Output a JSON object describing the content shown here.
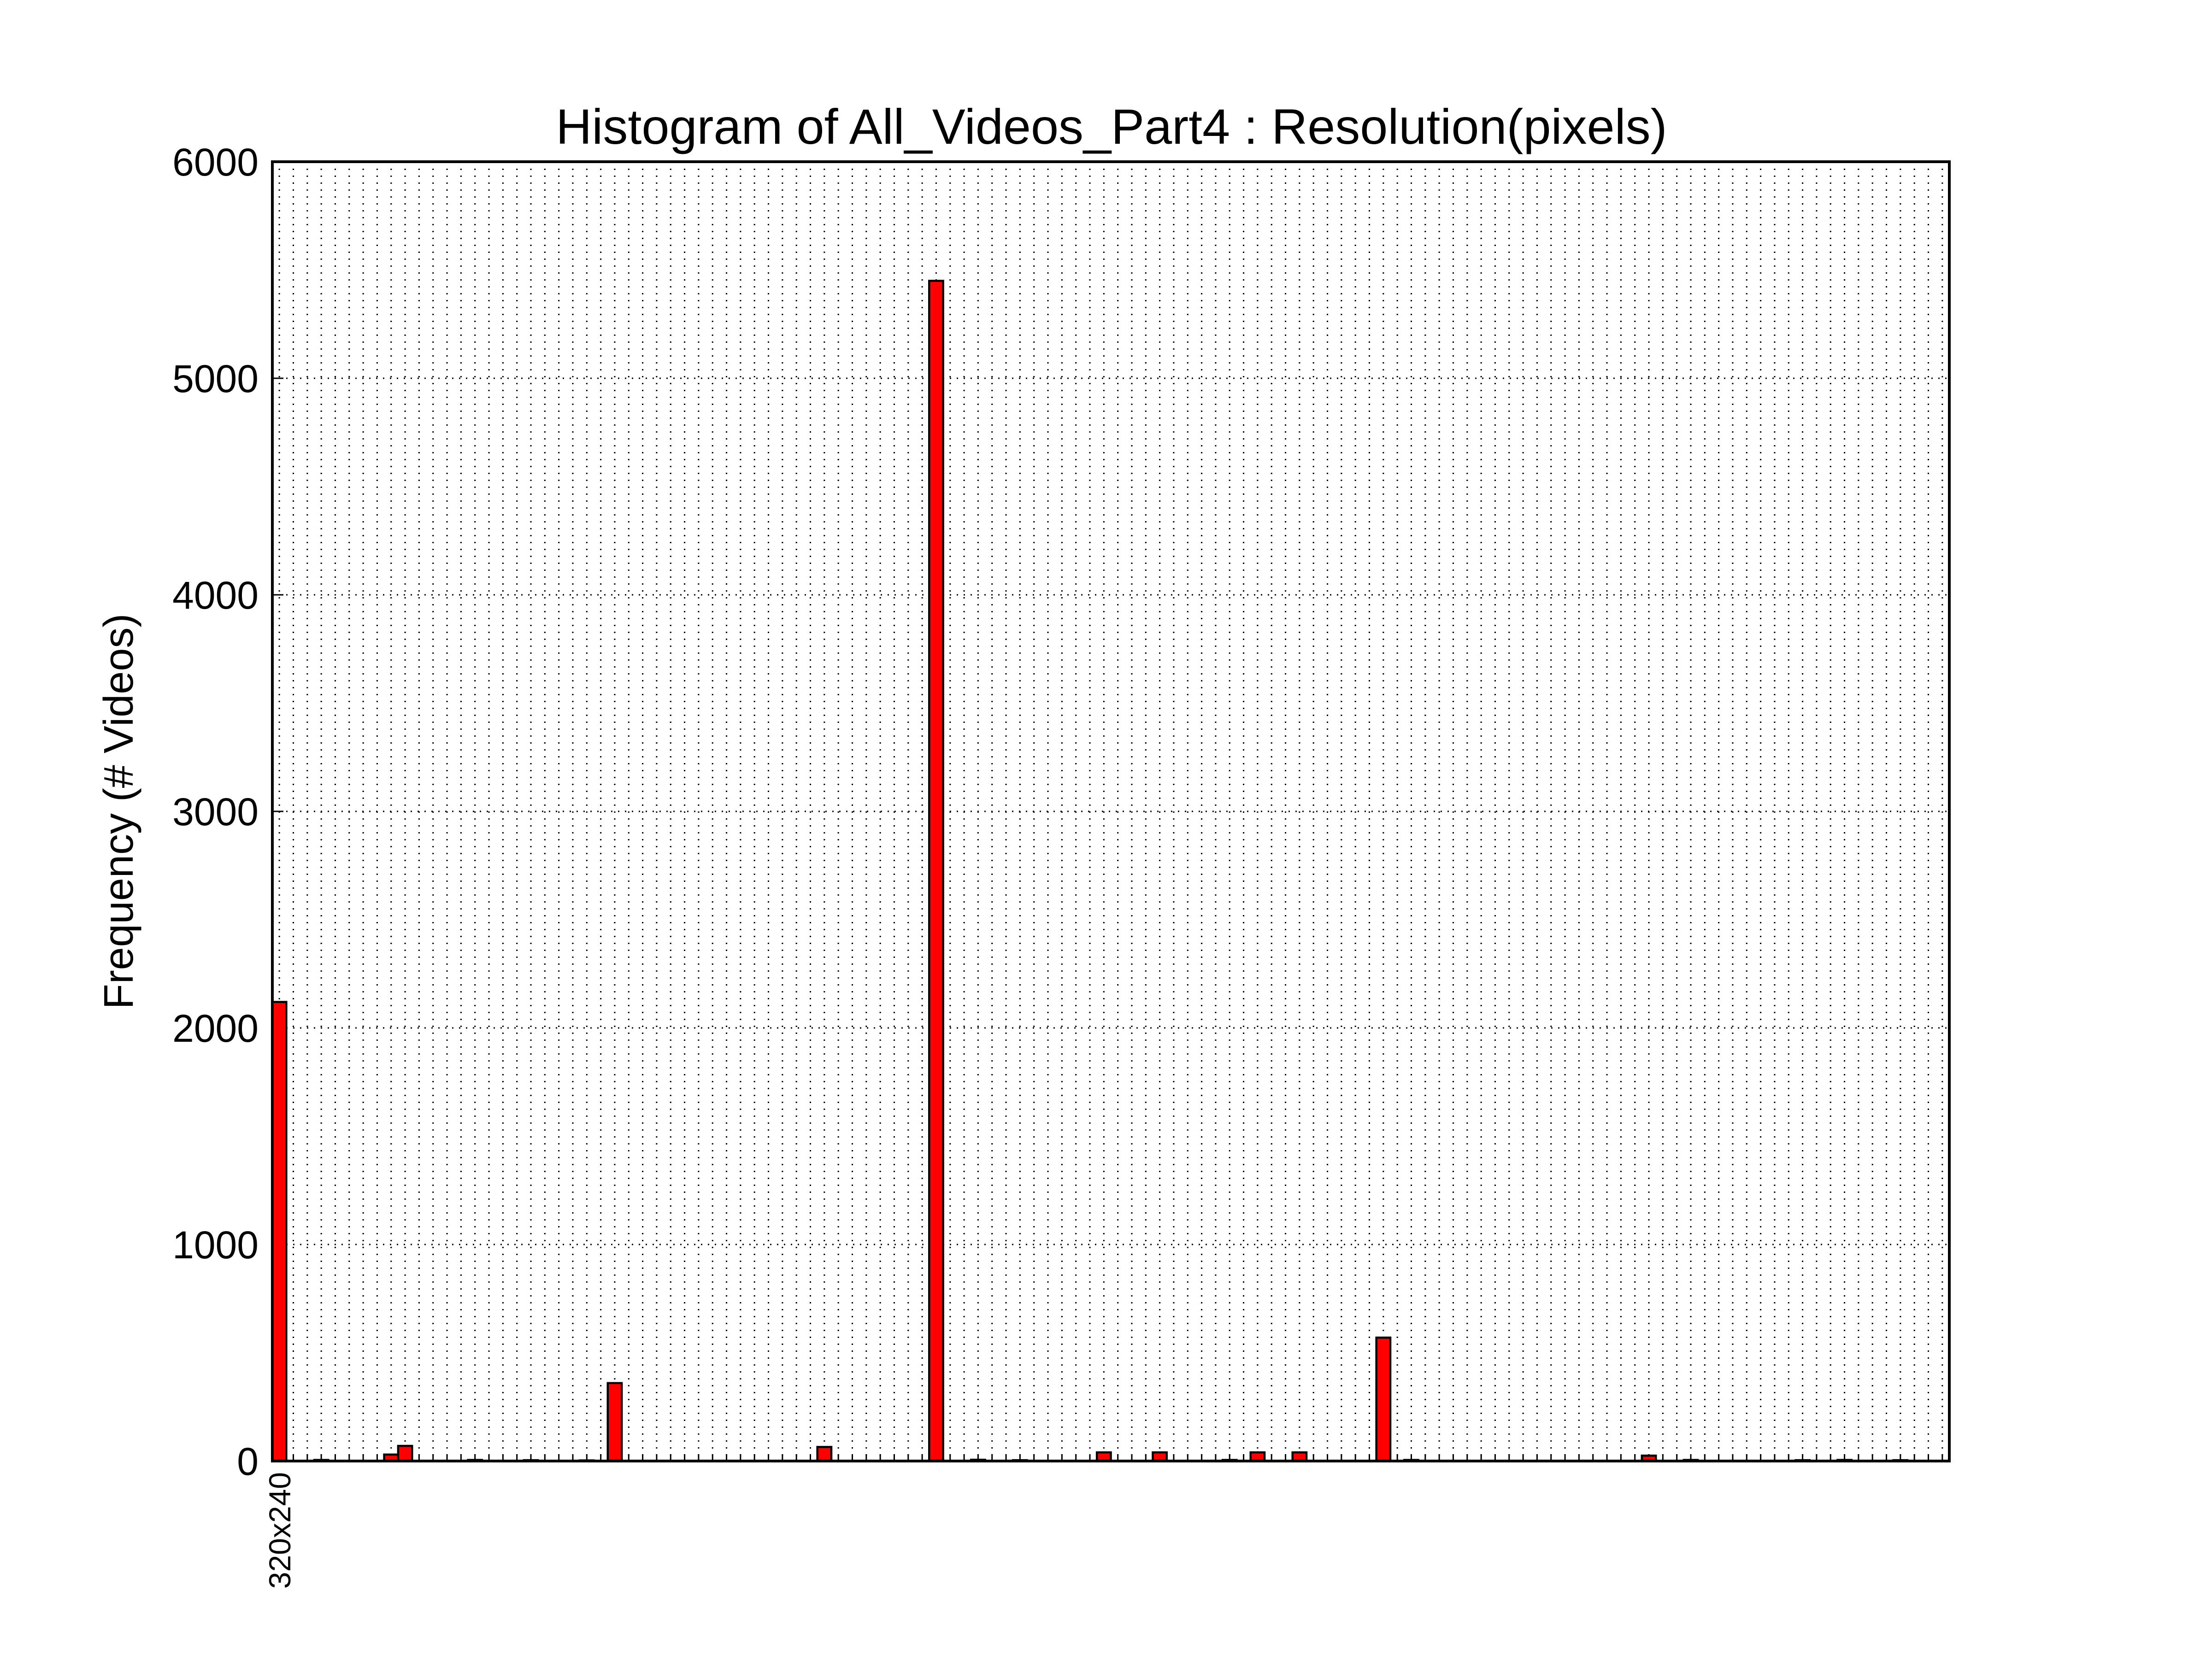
{
  "chart_data": {
    "type": "bar",
    "title": "Histogram of All_Videos_Part4 : Resolution(pixels)",
    "y_label": "Frequency (# Videos)",
    "categories": [
      "320x240",
      null,
      null,
      null,
      null,
      null,
      null,
      null,
      null,
      null,
      null,
      null,
      null,
      null,
      null,
      null,
      null,
      null,
      null,
      null,
      null,
      null,
      null,
      null,
      null,
      null,
      null,
      null,
      null,
      null,
      null,
      null,
      null,
      null,
      null,
      null,
      null,
      null,
      null,
      null,
      null,
      null,
      null,
      null,
      null,
      null,
      null,
      null,
      null,
      null,
      null,
      null,
      null,
      null,
      null,
      null,
      null,
      null,
      null,
      null,
      null,
      null,
      null,
      null,
      null,
      null,
      null,
      null,
      null,
      null,
      null,
      null,
      null,
      null,
      null,
      null,
      null,
      null,
      null,
      null,
      null,
      null,
      null,
      null,
      null,
      null,
      null,
      null,
      null,
      null,
      null,
      null,
      null,
      null,
      null,
      null,
      null,
      null,
      null,
      null,
      null,
      null,
      null,
      null,
      null,
      null,
      null,
      null,
      null,
      null,
      null,
      null,
      null,
      null,
      null,
      null,
      null,
      null,
      null,
      null
    ],
    "values": [
      2120,
      0,
      0,
      5,
      0,
      0,
      0,
      0,
      30,
      70,
      0,
      0,
      0,
      0,
      5,
      0,
      0,
      0,
      4,
      0,
      0,
      0,
      3,
      0,
      360,
      0,
      0,
      0,
      0,
      0,
      0,
      0,
      0,
      0,
      0,
      0,
      0,
      0,
      0,
      65,
      0,
      0,
      0,
      0,
      0,
      0,
      0,
      5450,
      0,
      0,
      6,
      0,
      0,
      4,
      0,
      0,
      0,
      0,
      0,
      40,
      0,
      0,
      0,
      40,
      0,
      0,
      0,
      0,
      5,
      0,
      40,
      0,
      0,
      40,
      0,
      0,
      0,
      0,
      0,
      570,
      0,
      5,
      0,
      0,
      0,
      0,
      0,
      0,
      0,
      0,
      0,
      0,
      0,
      0,
      0,
      0,
      0,
      0,
      25,
      0,
      0,
      5,
      0,
      0,
      0,
      0,
      0,
      0,
      0,
      4,
      0,
      0,
      5,
      0,
      0,
      0,
      4,
      0,
      0,
      0
    ],
    "color": "#ff0000",
    "ylim": [
      0,
      6000
    ],
    "yticks": [
      0,
      1000,
      2000,
      3000,
      4000,
      5000,
      6000
    ],
    "grid": true
  }
}
